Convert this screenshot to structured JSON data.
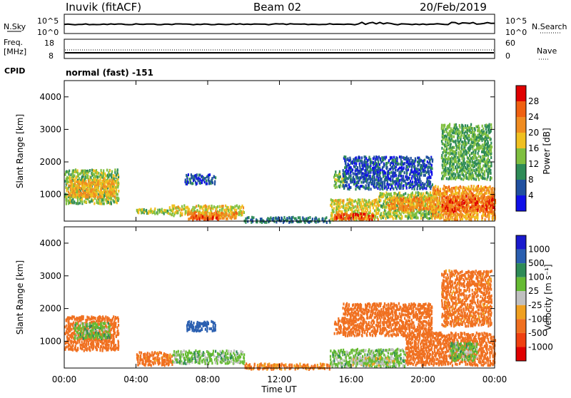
{
  "header": {
    "station": "Inuvik (fitACF)",
    "beam": "Beam 02",
    "date": "20/Feb/2019"
  },
  "params": {
    "nsky_label": "N.Sky",
    "nsearch_label": "N.Search",
    "nsky_ticks": [
      "10^5",
      "10^0"
    ],
    "nsearch_ticks": [
      "10^5",
      "10^0"
    ],
    "freq_label_1": "Freq.",
    "freq_label_2": "[MHz]",
    "freq_ticks": [
      "18",
      "8"
    ],
    "nave_label": "Nave",
    "nave_ticks": [
      "60",
      "0"
    ],
    "cpid_label": "CPID",
    "cpid_value": "normal (fast) -151"
  },
  "colors": {
    "power": [
      "#1010e8",
      "#2050a0",
      "#2e8b57",
      "#7fbf3f",
      "#f0c020",
      "#f08c20",
      "#f06010",
      "#e00000"
    ],
    "velocity": [
      "#1a1acd",
      "#2a5fb0",
      "#2e8b57",
      "#66bb33",
      "#c0c0c0",
      "#f0a020",
      "#f07020",
      "#f04010",
      "#e00000"
    ]
  },
  "chart_data": [
    {
      "type": "heatmap",
      "panel": "power",
      "ylabel": "Slant Range [km]",
      "yticks": [
        "4000",
        "3000",
        "2000",
        "1000"
      ],
      "ylim": [
        180,
        4500
      ],
      "xlim": [
        0,
        24
      ],
      "colorbar_label": "Power [dB]",
      "colorbar_ticks": [
        "28",
        "24",
        "20",
        "16",
        "12",
        "8",
        "4"
      ],
      "colorbar_range": [
        0,
        32
      ],
      "regions": [
        {
          "t": [
            0.0,
            3.0
          ],
          "r": [
            750,
            1800
          ],
          "v": 14
        },
        {
          "t": [
            0.2,
            2.8
          ],
          "r": [
            950,
            1500
          ],
          "v": 20
        },
        {
          "t": [
            4.0,
            5.8
          ],
          "r": [
            450,
            600
          ],
          "v": 14
        },
        {
          "t": [
            5.8,
            10.0
          ],
          "r": [
            380,
            700
          ],
          "v": 17
        },
        {
          "t": [
            6.8,
            9.6
          ],
          "r": [
            280,
            500
          ],
          "v": 22
        },
        {
          "t": [
            7.0,
            8.6
          ],
          "r": [
            250,
            400
          ],
          "v": 27
        },
        {
          "t": [
            6.7,
            8.4
          ],
          "r": [
            1350,
            1650
          ],
          "v": 6
        },
        {
          "t": [
            10.0,
            14.8
          ],
          "r": [
            180,
            340
          ],
          "v": 8
        },
        {
          "t": [
            15.0,
            15.6
          ],
          "r": [
            1250,
            1750
          ],
          "v": 14
        },
        {
          "t": [
            14.8,
            17.5
          ],
          "r": [
            250,
            900
          ],
          "v": 17
        },
        {
          "t": [
            15.0,
            17.2
          ],
          "r": [
            250,
            450
          ],
          "v": 27
        },
        {
          "t": [
            17.5,
            21.0
          ],
          "r": [
            300,
            1100
          ],
          "v": 15
        },
        {
          "t": [
            18.0,
            20.5
          ],
          "r": [
            550,
            950
          ],
          "v": 22
        },
        {
          "t": [
            20.5,
            24.0
          ],
          "r": [
            250,
            1300
          ],
          "v": 21
        },
        {
          "t": [
            21.0,
            24.0
          ],
          "r": [
            500,
            1000
          ],
          "v": 26
        },
        {
          "t": [
            15.5,
            20.5
          ],
          "r": [
            1200,
            2200
          ],
          "v": 6
        },
        {
          "t": [
            21.0,
            23.8
          ],
          "r": [
            1500,
            3200
          ],
          "v": 12
        }
      ]
    },
    {
      "type": "heatmap",
      "panel": "velocity",
      "ylabel": "Slant Range [km]",
      "yticks": [
        "4000",
        "3000",
        "2000",
        "1000"
      ],
      "ylim": [
        180,
        4500
      ],
      "xlim": [
        0,
        24
      ],
      "xlabel": "Time UT",
      "xticks": [
        "00:00",
        "04:00",
        "08:00",
        "12:00",
        "16:00",
        "20:00",
        "00:00"
      ],
      "colorbar_label": "Velocity [m s⁻¹]",
      "colorbar_ticks": [
        "1000",
        "500",
        "100",
        "25",
        "-25",
        "-100",
        "-500",
        "-1000"
      ],
      "regions": [
        {
          "t": [
            0.0,
            3.0
          ],
          "r": [
            750,
            1800
          ],
          "v": -300
        },
        {
          "t": [
            0.5,
            2.5
          ],
          "r": [
            1100,
            1600
          ],
          "v": 60
        },
        {
          "t": [
            4.0,
            6.0
          ],
          "r": [
            300,
            700
          ],
          "v": -150
        },
        {
          "t": [
            6.0,
            10.0
          ],
          "r": [
            350,
            750
          ],
          "v": 60
        },
        {
          "t": [
            6.8,
            8.4
          ],
          "r": [
            1350,
            1650
          ],
          "v": 800
        },
        {
          "t": [
            10.0,
            14.8
          ],
          "r": [
            180,
            350
          ],
          "v": -120
        },
        {
          "t": [
            15.0,
            15.6
          ],
          "r": [
            1250,
            1750
          ],
          "v": -300
        },
        {
          "t": [
            14.8,
            19.0
          ],
          "r": [
            250,
            800
          ],
          "v": 60
        },
        {
          "t": [
            16.0,
            18.5
          ],
          "r": [
            300,
            550
          ],
          "v": 0
        },
        {
          "t": [
            19.0,
            24.0
          ],
          "r": [
            300,
            1300
          ],
          "v": -400
        },
        {
          "t": [
            21.5,
            23.0
          ],
          "r": [
            450,
            1000
          ],
          "v": 60
        },
        {
          "t": [
            15.5,
            20.5
          ],
          "r": [
            1200,
            2200
          ],
          "v": -200
        },
        {
          "t": [
            21.0,
            23.8
          ],
          "r": [
            1500,
            3200
          ],
          "v": -150
        }
      ]
    }
  ]
}
